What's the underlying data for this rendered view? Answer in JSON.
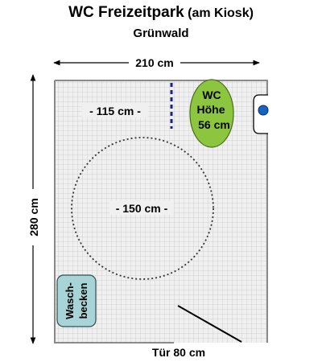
{
  "header": {
    "title": "WC Freizeitpark",
    "title_suffix": "(am Kiosk)",
    "subtitle": "Grünwald"
  },
  "dimensions": {
    "width": "210 cm",
    "depth": "280 cm",
    "clearance": "- 115 cm -",
    "turning_circle": "- 150 cm -",
    "door": "Tür 80 cm"
  },
  "fixtures": {
    "wc_line1": "WC",
    "wc_line2": "Höhe",
    "wc_line3": "56 cm",
    "sink_line1": "Wasch-",
    "sink_line2": "becken"
  },
  "colors": {
    "floor": "#f0f0f0",
    "grid": "#c8c8c8",
    "wall": "#8a8a8a",
    "wc": "#8cc63f",
    "sink": "#a8d4d8",
    "grab_bar": "#1a237e",
    "flush_button": "#1565c0"
  }
}
